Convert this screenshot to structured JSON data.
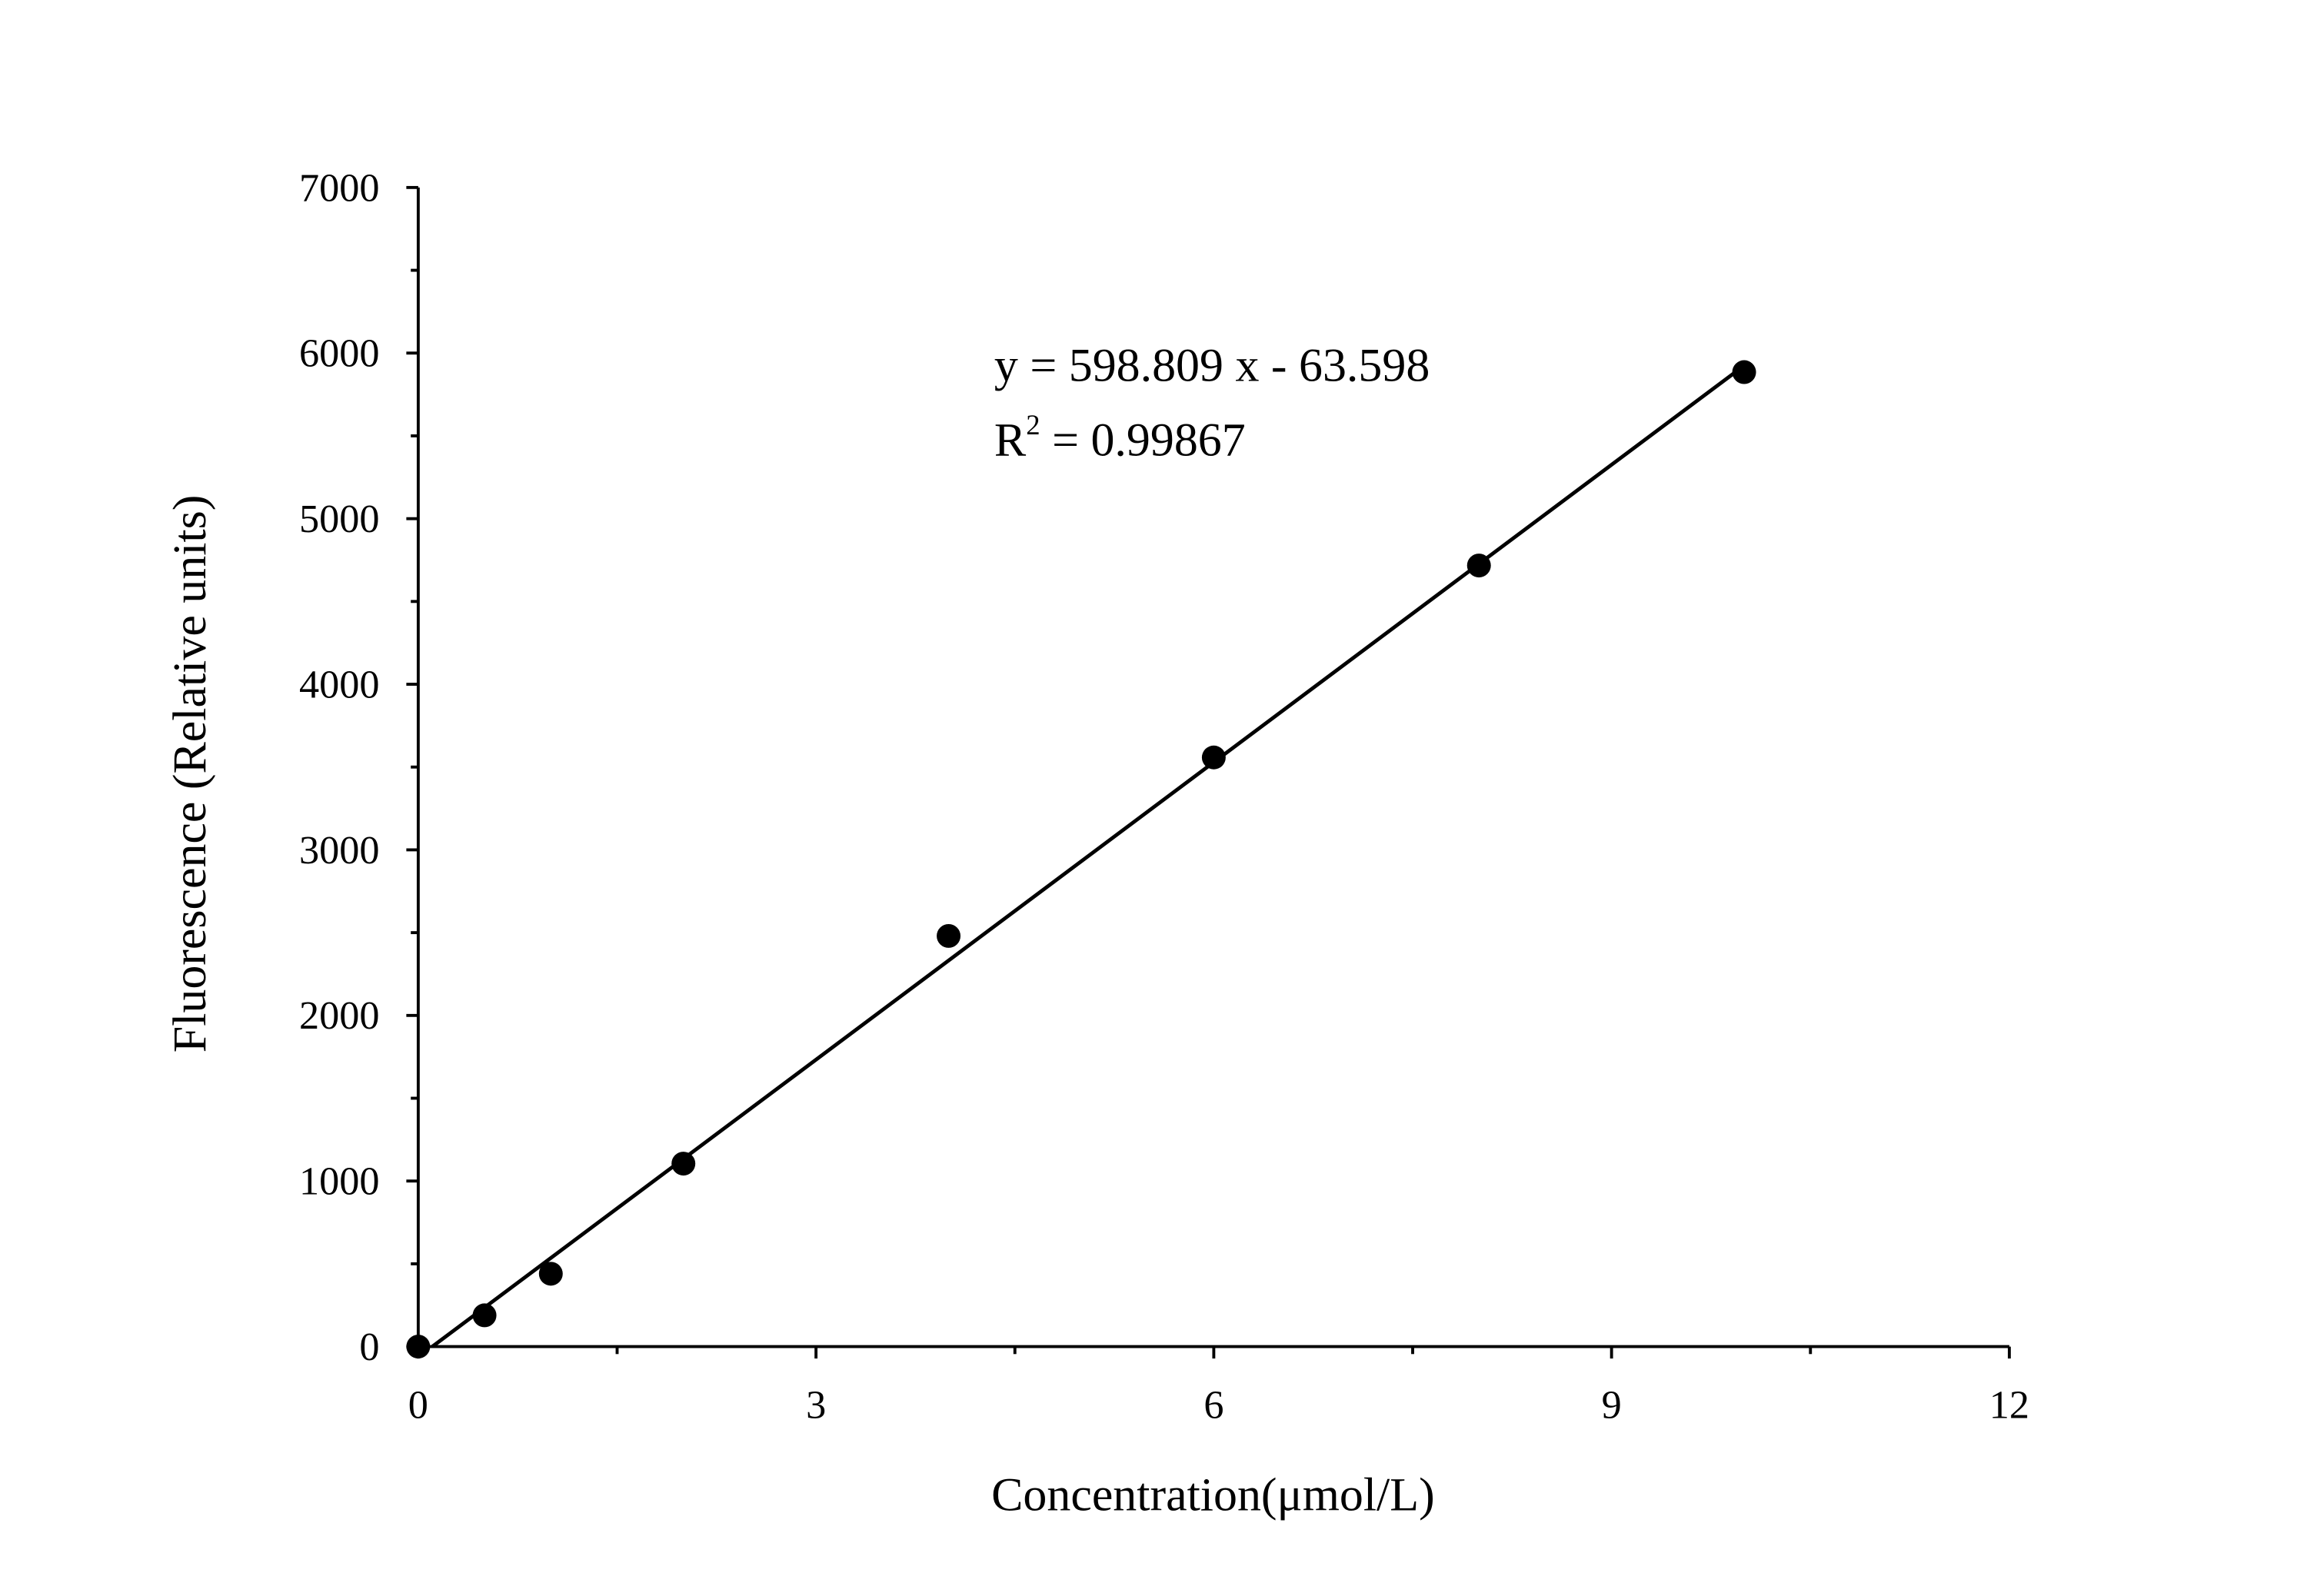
{
  "chart_data": {
    "type": "scatter",
    "xlabel": "Concentration(μmol/L)",
    "ylabel": "Fluorescence (Relative units)",
    "x": [
      0,
      0.5,
      1,
      2,
      4,
      6,
      8,
      10
    ],
    "series": [
      {
        "name": "Fluorescence",
        "color": "#000000",
        "values": [
          0,
          189,
          440,
          1105,
          2480,
          3558,
          4717,
          5885
        ]
      }
    ],
    "fit": {
      "x": [
        0.1062,
        10
      ],
      "values": [
        0,
        5924.49
      ],
      "color": "#000000"
    },
    "annotations": [
      "y = 598.809 x - 63.598",
      [
        "R",
        "2",
        " = 0.99867"
      ]
    ],
    "xlim": [
      0,
      12
    ],
    "xticks": [
      0,
      3,
      6,
      9,
      12
    ],
    "ylim": [
      0,
      7000
    ],
    "yticks": [
      0,
      1000,
      2000,
      3000,
      4000,
      5000,
      6000,
      7000
    ],
    "grid": false
  }
}
